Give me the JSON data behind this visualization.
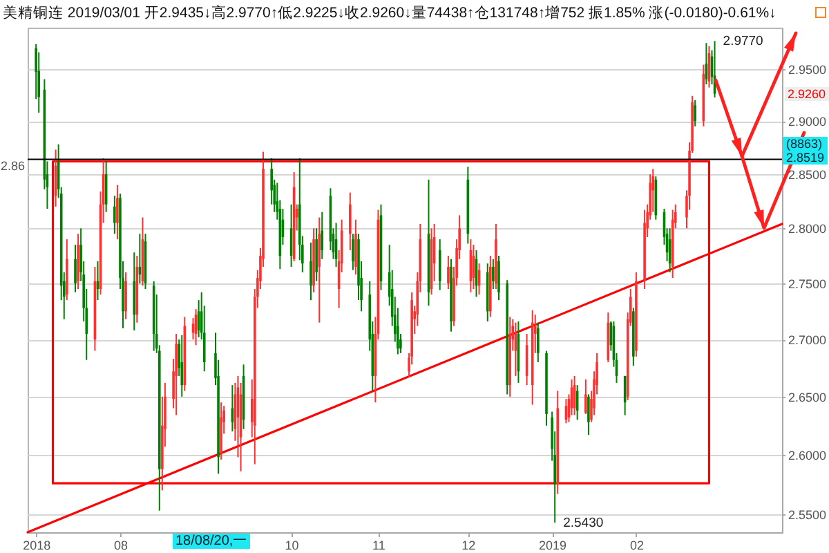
{
  "chart_data": {
    "type": "candlestick",
    "title": "美精铜连 2019/03/01 开2.9435↓高2.9770↑低2.9225↓收2.9260↓量74438↑仓131748↑增752 振1.85% 涨(-0.0180)-0.61%↓",
    "x": [
      "2018-07-02",
      "2018-07-03",
      "2018-07-05",
      "2018-07-06",
      "2018-07-09",
      "2018-07-10",
      "2018-07-11",
      "2018-07-12",
      "2018-07-13",
      "2018-07-16",
      "2018-07-17",
      "2018-07-18",
      "2018-07-19",
      "2018-07-20",
      "2018-07-23",
      "2018-07-24",
      "2018-07-25",
      "2018-07-26",
      "2018-07-27",
      "2018-07-30",
      "2018-07-31",
      "2018-08-01",
      "2018-08-02",
      "2018-08-03",
      "2018-08-06",
      "2018-08-07",
      "2018-08-08",
      "2018-08-09",
      "2018-08-10",
      "2018-08-13",
      "2018-08-14",
      "2018-08-15",
      "2018-08-16",
      "2018-08-17",
      "2018-08-20",
      "2018-08-21",
      "2018-08-22",
      "2018-08-23",
      "2018-08-24",
      "2018-08-27",
      "2018-08-28",
      "2018-08-29",
      "2018-08-30",
      "2018-08-31",
      "2018-09-04",
      "2018-09-05",
      "2018-09-06",
      "2018-09-07",
      "2018-09-10",
      "2018-09-11",
      "2018-09-12",
      "2018-09-13",
      "2018-09-14",
      "2018-09-17",
      "2018-09-18",
      "2018-09-19",
      "2018-09-20",
      "2018-09-21",
      "2018-09-24",
      "2018-09-25",
      "2018-09-26",
      "2018-09-27",
      "2018-09-28",
      "2018-10-01",
      "2018-10-02",
      "2018-10-03",
      "2018-10-04",
      "2018-10-05",
      "2018-10-08",
      "2018-10-09",
      "2018-10-10",
      "2018-10-11",
      "2018-10-12",
      "2018-10-15",
      "2018-10-16",
      "2018-10-17",
      "2018-10-18",
      "2018-10-19",
      "2018-10-22",
      "2018-10-23",
      "2018-10-24",
      "2018-10-25",
      "2018-10-26",
      "2018-10-29",
      "2018-10-30",
      "2018-10-31",
      "2018-11-01",
      "2018-11-02",
      "2018-11-05",
      "2018-11-06",
      "2018-11-07",
      "2018-11-08",
      "2018-11-09",
      "2018-11-12",
      "2018-11-13",
      "2018-11-14",
      "2018-11-15",
      "2018-11-16",
      "2018-11-19",
      "2018-11-20",
      "2018-11-21",
      "2018-11-23",
      "2018-11-26",
      "2018-11-27",
      "2018-11-28",
      "2018-11-29",
      "2018-11-30",
      "2018-12-03",
      "2018-12-04",
      "2018-12-05",
      "2018-12-06",
      "2018-12-07",
      "2018-12-10",
      "2018-12-11",
      "2018-12-12",
      "2018-12-13",
      "2018-12-14",
      "2018-12-17",
      "2018-12-18",
      "2018-12-19",
      "2018-12-20",
      "2018-12-21",
      "2018-12-24",
      "2018-12-26",
      "2018-12-27",
      "2018-12-28",
      "2018-12-31",
      "2019-01-02",
      "2019-01-03",
      "2019-01-04",
      "2019-01-07",
      "2019-01-08",
      "2019-01-09",
      "2019-01-10",
      "2019-01-11",
      "2019-01-14",
      "2019-01-15",
      "2019-01-16",
      "2019-01-17",
      "2019-01-18",
      "2019-01-22",
      "2019-01-23",
      "2019-01-24",
      "2019-01-25",
      "2019-01-28",
      "2019-01-29",
      "2019-01-30",
      "2019-01-31",
      "2019-02-01",
      "2019-02-04",
      "2019-02-05",
      "2019-02-06",
      "2019-02-07",
      "2019-02-08",
      "2019-02-11",
      "2019-02-12",
      "2019-02-13",
      "2019-02-14",
      "2019-02-15",
      "2019-02-19",
      "2019-02-20",
      "2019-02-21",
      "2019-02-22",
      "2019-02-25",
      "2019-02-26",
      "2019-02-27",
      "2019-02-28",
      "2019-03-01"
    ],
    "ohlc": [
      [
        2.97,
        2.974,
        2.921,
        2.947
      ],
      [
        2.948,
        2.966,
        2.908,
        2.923
      ],
      [
        2.93,
        2.94,
        2.836,
        2.845
      ],
      [
        2.85,
        2.862,
        2.818,
        2.838
      ],
      [
        2.83,
        2.873,
        2.82,
        2.858
      ],
      [
        2.862,
        2.878,
        2.828,
        2.836
      ],
      [
        2.832,
        2.838,
        2.735,
        2.748
      ],
      [
        2.752,
        2.76,
        2.718,
        2.738
      ],
      [
        2.74,
        2.79,
        2.735,
        2.772
      ],
      [
        2.772,
        2.785,
        2.742,
        2.75
      ],
      [
        2.752,
        2.795,
        2.745,
        2.785
      ],
      [
        2.785,
        2.8,
        2.752,
        2.76
      ],
      [
        2.758,
        2.77,
        2.716,
        2.728
      ],
      [
        2.728,
        2.745,
        2.682,
        2.705
      ],
      [
        2.7,
        2.765,
        2.69,
        2.752
      ],
      [
        2.752,
        2.77,
        2.735,
        2.745
      ],
      [
        2.745,
        2.834,
        2.74,
        2.822
      ],
      [
        2.822,
        2.865,
        2.805,
        2.85
      ],
      [
        2.85,
        2.862,
        2.815,
        2.822
      ],
      [
        2.82,
        2.83,
        2.795,
        2.805
      ],
      [
        2.805,
        2.84,
        2.79,
        2.828
      ],
      [
        2.828,
        2.832,
        2.745,
        2.755
      ],
      [
        2.755,
        2.77,
        2.71,
        2.725
      ],
      [
        2.725,
        2.76,
        2.718,
        2.752
      ],
      [
        2.752,
        2.778,
        2.708,
        2.722
      ],
      [
        2.722,
        2.775,
        2.715,
        2.765
      ],
      [
        2.765,
        2.795,
        2.75,
        2.758
      ],
      [
        2.752,
        2.81,
        2.748,
        2.79
      ],
      [
        2.788,
        2.795,
        2.745,
        2.75
      ],
      [
        2.748,
        2.752,
        2.69,
        2.705
      ],
      [
        2.705,
        2.74,
        2.688,
        2.692
      ],
      [
        2.69,
        2.695,
        2.553,
        2.588
      ],
      [
        2.588,
        2.65,
        2.57,
        2.625
      ],
      [
        2.622,
        2.662,
        2.607,
        2.65
      ],
      [
        2.648,
        2.683,
        2.64,
        2.672
      ],
      [
        2.668,
        2.705,
        2.634,
        2.696
      ],
      [
        2.696,
        2.7,
        2.668,
        2.675
      ],
      [
        2.68,
        2.704,
        2.65,
        2.66
      ],
      [
        2.66,
        2.72,
        2.655,
        2.712
      ],
      [
        2.706,
        2.719,
        2.7,
        2.714
      ],
      [
        2.705,
        2.727,
        2.695,
        2.722
      ],
      [
        2.725,
        2.735,
        2.702,
        2.708
      ],
      [
        2.725,
        2.742,
        2.7,
        2.706
      ],
      [
        2.706,
        2.73,
        2.672,
        2.68
      ],
      [
        2.688,
        2.706,
        2.66,
        2.666
      ],
      [
        2.668,
        2.682,
        2.584,
        2.598
      ],
      [
        2.602,
        2.645,
        2.596,
        2.632
      ],
      [
        2.628,
        2.642,
        2.618,
        2.638
      ],
      [
        2.64,
        2.66,
        2.62,
        2.628
      ],
      [
        2.622,
        2.662,
        2.612,
        2.652
      ],
      [
        2.632,
        2.668,
        2.598,
        2.658
      ],
      [
        2.615,
        2.662,
        2.586,
        2.652
      ],
      [
        2.668,
        2.678,
        2.622,
        2.63
      ],
      [
        2.628,
        2.665,
        2.615,
        2.648
      ],
      [
        2.625,
        2.745,
        2.592,
        2.738
      ],
      [
        2.738,
        2.762,
        2.728,
        2.755
      ],
      [
        2.752,
        2.782,
        2.745,
        2.775
      ],
      [
        2.772,
        2.871,
        2.765,
        2.855
      ],
      [
        2.855,
        2.865,
        2.822,
        2.835
      ],
      [
        2.84,
        2.845,
        2.815,
        2.822
      ],
      [
        2.825,
        2.842,
        2.808,
        2.815
      ],
      [
        2.818,
        2.826,
        2.763,
        2.775
      ],
      [
        2.808,
        2.818,
        2.785,
        2.792
      ],
      [
        2.8,
        2.822,
        2.765,
        2.775
      ],
      [
        2.772,
        2.852,
        2.77,
        2.838
      ],
      [
        2.81,
        2.822,
        2.798,
        2.818
      ],
      [
        2.822,
        2.865,
        2.771,
        2.785
      ],
      [
        2.785,
        2.793,
        2.76,
        2.768
      ],
      [
        2.77,
        2.787,
        2.735,
        2.748
      ],
      [
        2.748,
        2.8,
        2.742,
        2.79
      ],
      [
        2.79,
        2.8,
        2.752,
        2.76
      ],
      [
        2.765,
        2.81,
        2.715,
        2.795
      ],
      [
        2.798,
        2.815,
        2.772,
        2.78
      ],
      [
        2.83,
        2.837,
        2.78,
        2.788
      ],
      [
        2.795,
        2.8,
        2.772,
        2.778
      ],
      [
        2.79,
        2.805,
        2.765,
        2.772
      ],
      [
        2.745,
        2.78,
        2.728,
        2.77
      ],
      [
        2.768,
        2.808,
        2.76,
        2.798
      ],
      [
        2.795,
        2.833,
        2.78,
        2.822
      ],
      [
        2.79,
        2.795,
        2.762,
        2.77
      ],
      [
        2.765,
        2.808,
        2.758,
        2.795
      ],
      [
        2.79,
        2.795,
        2.735,
        2.748
      ],
      [
        2.755,
        2.77,
        2.725,
        2.735
      ],
      [
        2.74,
        2.752,
        2.69,
        2.7
      ],
      [
        2.705,
        2.716,
        2.655,
        2.668
      ],
      [
        2.668,
        2.72,
        2.645,
        2.705
      ],
      [
        2.705,
        2.817,
        2.7,
        2.808
      ],
      [
        2.812,
        2.822,
        2.744,
        2.752
      ],
      [
        2.76,
        2.785,
        2.73,
        2.738
      ],
      [
        2.745,
        2.762,
        2.712,
        2.72
      ],
      [
        2.722,
        2.738,
        2.698,
        2.705
      ],
      [
        2.712,
        2.728,
        2.687,
        2.692
      ],
      [
        2.7,
        2.705,
        2.688,
        2.692
      ],
      [
        2.672,
        2.688,
        2.667,
        2.684
      ],
      [
        2.685,
        2.742,
        2.678,
        2.735
      ],
      [
        2.718,
        2.73,
        2.705,
        2.725
      ],
      [
        2.722,
        2.76,
        2.712,
        2.752
      ],
      [
        2.752,
        2.804,
        2.742,
        2.79
      ],
      [
        2.795,
        2.845,
        2.73,
        2.742
      ],
      [
        2.745,
        2.8,
        2.74,
        2.79
      ],
      [
        2.768,
        2.804,
        2.752,
        2.792
      ],
      [
        2.78,
        2.79,
        2.744,
        2.752
      ],
      [
        2.75,
        2.775,
        2.745,
        2.765
      ],
      [
        2.765,
        2.772,
        2.707,
        2.716
      ],
      [
        2.716,
        2.765,
        2.712,
        2.755
      ],
      [
        2.755,
        2.79,
        2.748,
        2.782
      ],
      [
        2.78,
        2.812,
        2.772,
        2.8
      ],
      [
        2.845,
        2.857,
        2.786,
        2.795
      ],
      [
        2.752,
        2.79,
        2.742,
        2.78
      ],
      [
        2.755,
        2.785,
        2.745,
        2.775
      ],
      [
        2.772,
        2.78,
        2.738,
        2.748
      ],
      [
        2.748,
        2.768,
        2.74,
        2.762
      ],
      [
        2.76,
        2.768,
        2.716,
        2.725
      ],
      [
        2.725,
        2.775,
        2.72,
        2.765
      ],
      [
        2.765,
        2.772,
        2.745,
        2.752
      ],
      [
        2.75,
        2.804,
        2.745,
        2.79
      ],
      [
        2.77,
        2.775,
        2.735,
        2.742
      ],
      [
        2.75,
        2.753,
        2.652,
        2.66
      ],
      [
        2.66,
        2.72,
        2.65,
        2.705
      ],
      [
        2.7,
        2.718,
        2.69,
        2.712
      ],
      [
        2.69,
        2.715,
        2.668,
        2.705
      ],
      [
        2.705,
        2.716,
        2.662,
        2.672
      ],
      [
        2.668,
        2.705,
        2.66,
        2.695
      ],
      [
        2.66,
        2.726,
        2.643,
        2.715
      ],
      [
        2.705,
        2.722,
        2.688,
        2.712
      ],
      [
        2.71,
        2.715,
        2.68,
        2.688
      ],
      [
        2.688,
        2.69,
        2.625,
        2.635
      ],
      [
        2.632,
        2.637,
        2.595,
        2.605
      ],
      [
        2.6,
        2.62,
        2.543,
        2.575
      ],
      [
        2.575,
        2.655,
        2.567,
        2.64
      ],
      [
        2.63,
        2.648,
        2.627,
        2.642
      ],
      [
        2.632,
        2.652,
        2.628,
        2.648
      ],
      [
        2.64,
        2.665,
        2.634,
        2.658
      ],
      [
        2.64,
        2.668,
        2.634,
        2.66
      ],
      [
        2.655,
        2.66,
        2.63,
        2.638
      ],
      [
        2.636,
        2.665,
        2.635,
        2.652
      ],
      [
        2.65,
        2.652,
        2.617,
        2.628
      ],
      [
        2.63,
        2.655,
        2.628,
        2.648
      ],
      [
        2.64,
        2.672,
        2.634,
        2.665
      ],
      [
        2.66,
        2.688,
        2.652,
        2.68
      ],
      [
        2.682,
        2.724,
        2.68,
        2.715
      ],
      [
        2.715,
        2.716,
        2.69,
        2.695
      ],
      [
        2.712,
        2.716,
        2.676,
        2.682
      ],
      [
        2.682,
        2.688,
        2.662,
        2.668
      ],
      [
        2.668,
        2.668,
        2.634,
        2.645
      ],
      [
        2.65,
        2.724,
        2.647,
        2.718
      ],
      [
        2.715,
        2.745,
        2.712,
        2.738
      ],
      [
        2.725,
        2.728,
        2.677,
        2.685
      ],
      [
        2.69,
        2.76,
        2.685,
        2.752
      ],
      [
        2.752,
        2.817,
        2.745,
        2.805
      ],
      [
        2.8,
        2.822,
        2.792,
        2.815
      ],
      [
        2.812,
        2.85,
        2.808,
        2.842
      ],
      [
        2.835,
        2.855,
        2.815,
        2.848
      ],
      [
        2.845,
        2.848,
        2.808,
        2.812
      ],
      [
        2.815,
        2.818,
        2.785,
        2.792
      ],
      [
        2.795,
        2.8,
        2.77,
        2.778
      ],
      [
        2.79,
        2.8,
        2.76,
        2.768
      ],
      [
        2.765,
        2.817,
        2.755,
        2.808
      ],
      [
        2.805,
        2.822,
        2.8,
        2.815
      ],
      [
        2.81,
        2.835,
        2.8,
        2.83
      ],
      [
        2.83,
        2.88,
        2.817,
        2.872
      ],
      [
        2.872,
        2.924,
        2.87,
        2.918
      ],
      [
        2.915,
        2.92,
        2.895,
        2.9
      ],
      [
        2.9,
        2.954,
        2.895,
        2.945
      ],
      [
        2.955,
        2.975,
        2.935,
        2.94
      ],
      [
        2.938,
        2.972,
        2.932,
        2.965
      ],
      [
        2.962,
        2.968,
        2.935,
        2.942
      ],
      [
        2.9435,
        2.977,
        2.9225,
        2.926
      ]
    ],
    "colors": [
      "#008000",
      "#008000",
      "#008000",
      "#008000",
      "#ff3030",
      "#008000",
      "#008000",
      "#008000",
      "#ff3030",
      "#008000",
      "#ff3030",
      "#008000",
      "#008000",
      "#008000",
      "#ff3030",
      "#008000",
      "#ff3030",
      "#ff3030",
      "#008000",
      "#008000",
      "#ff3030",
      "#008000",
      "#008000",
      "#ff3030",
      "#008000",
      "#ff3030",
      "#008000",
      "#ff3030",
      "#008000",
      "#008000",
      "#008000",
      "#008000",
      "#ff3030",
      "#ff3030",
      "#ff3030",
      "#ff3030",
      "#008000",
      "#008000",
      "#ff3030",
      "#ff3030",
      "#ff3030",
      "#008000",
      "#008000",
      "#008000",
      "#008000",
      "#008000",
      "#ff3030",
      "#ff3030",
      "#008000",
      "#ff3030",
      "#ff3030",
      "#ff3030",
      "#008000",
      "#ff3030",
      "#ff3030",
      "#ff3030",
      "#ff3030",
      "#ff3030",
      "#008000",
      "#008000",
      "#008000",
      "#008000",
      "#008000",
      "#008000",
      "#ff3030",
      "#ff3030",
      "#008000",
      "#008000",
      "#008000",
      "#ff3030",
      "#008000",
      "#ff3030",
      "#008000",
      "#008000",
      "#008000",
      "#008000",
      "#ff3030",
      "#ff3030",
      "#ff3030",
      "#008000",
      "#ff3030",
      "#008000",
      "#008000",
      "#008000",
      "#008000",
      "#ff3030",
      "#ff3030",
      "#008000",
      "#008000",
      "#008000",
      "#008000",
      "#008000",
      "#008000",
      "#ff3030",
      "#ff3030",
      "#ff3030",
      "#ff3030",
      "#ff3030",
      "#008000",
      "#ff3030",
      "#ff3030",
      "#008000",
      "#ff3030",
      "#008000",
      "#ff3030",
      "#ff3030",
      "#ff3030",
      "#008000",
      "#ff3030",
      "#ff3030",
      "#008000",
      "#ff3030",
      "#008000",
      "#ff3030",
      "#008000",
      "#ff3030",
      "#008000",
      "#008000",
      "#ff3030",
      "#ff3030",
      "#ff3030",
      "#008000",
      "#ff3030",
      "#ff3030",
      "#ff3030",
      "#008000",
      "#008000",
      "#008000",
      "#008000",
      "#ff3030",
      "#ff3030",
      "#ff3030",
      "#ff3030",
      "#ff3030",
      "#008000",
      "#ff3030",
      "#008000",
      "#ff3030",
      "#ff3030",
      "#ff3030",
      "#ff3030",
      "#008000",
      "#008000",
      "#008000",
      "#008000",
      "#ff3030",
      "#ff3030",
      "#008000",
      "#ff3030",
      "#ff3030",
      "#ff3030",
      "#ff3030",
      "#ff3030",
      "#008000",
      "#008000",
      "#008000",
      "#008000",
      "#ff3030",
      "#ff3030",
      "#ff3030",
      "#ff3030",
      "#ff3030",
      "#008000",
      "#ff3030",
      "#008000",
      "#ff3030",
      "#008000",
      "#008000"
    ],
    "series": [
      {
        "type": "line",
        "color": "#ff0000",
        "x": [
          "2018-06-29",
          "2019-03-25"
        ],
        "values": [
          2.535,
          2.804
        ]
      },
      {
        "type": "line",
        "color": "#ff0000",
        "x": [
          "2018-07-08",
          "2018-07-08",
          "2019-02-27"
        ],
        "values": [
          2.576,
          2.862,
          2.862
        ]
      },
      {
        "type": "line",
        "color": "#ff0000",
        "x": [
          "2018-07-08",
          "2019-02-27",
          "2019-02-27"
        ],
        "values": [
          2.576,
          2.576,
          2.862
        ]
      }
    ],
    "xlim": [
      "2018-06-29",
      "2019-03-25"
    ],
    "xticks": [
      {
        "value": "2018-07-02",
        "label": "2018"
      },
      {
        "value": "2018-08-01",
        "label": "08"
      },
      {
        "value": "2018-10-01",
        "label": "10"
      },
      {
        "value": "2018-11-01",
        "label": "11"
      },
      {
        "value": "2018-12-03",
        "label": "12"
      },
      {
        "value": "2019-01-02",
        "label": "2019"
      },
      {
        "value": "2019-02-01",
        "label": "02"
      }
    ],
    "ylim": [
      2.535,
      2.99
    ],
    "yticks": [
      {
        "value": 2.55,
        "label": "2.5500"
      },
      {
        "value": 2.6,
        "label": "2.6000"
      },
      {
        "value": 2.65,
        "label": "2.6500"
      },
      {
        "value": 2.7,
        "label": "2.7000"
      },
      {
        "value": 2.75,
        "label": "2.7500"
      },
      {
        "value": 2.8,
        "label": "2.8000"
      },
      {
        "value": 2.85,
        "label": "2.8500"
      },
      {
        "value": 2.9,
        "label": "2.9000"
      },
      {
        "value": 2.95,
        "label": "2.9500"
      }
    ],
    "log": true,
    "grid": "y",
    "ref_lines": [
      {
        "axis": "y",
        "value": 2.864,
        "label": "2.86",
        "color": "#000000"
      }
    ],
    "annotations": [
      {
        "text": "2.9770",
        "x": "2019-03-01",
        "y": 2.977
      },
      {
        "text": "2.5430",
        "x": "2019-01-03",
        "y": 2.543
      },
      "2.9260",
      "18/08/20,一",
      "(8863)",
      "2.8519"
    ]
  }
}
